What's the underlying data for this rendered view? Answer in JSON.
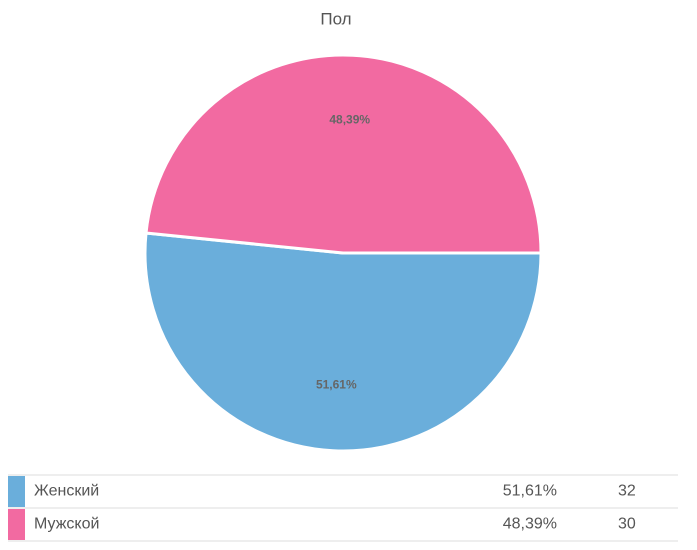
{
  "chart_data": {
    "type": "pie",
    "title": "Пол",
    "categories": [
      "Женский",
      "Мужской"
    ],
    "values": [
      51.61,
      48.39
    ],
    "value_labels": [
      "51,61%",
      "48,39%"
    ],
    "counts": [
      32,
      30
    ],
    "colors": [
      "#6aaedb",
      "#f26aa1"
    ]
  }
}
